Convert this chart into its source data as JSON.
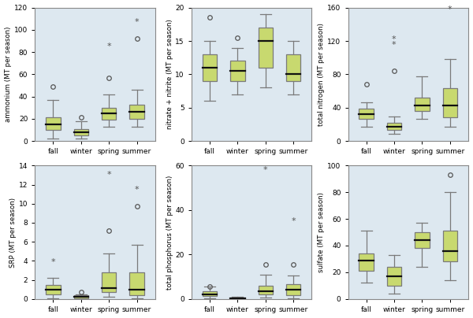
{
  "fig_background": "#ffffff",
  "background_color": "#dde8f0",
  "box_color": "#c8d96f",
  "box_edge_color": "#7a7a7a",
  "median_color": "#111111",
  "whisker_color": "#7a7a7a",
  "outlier_color": "#555555",
  "subplots": [
    {
      "ylabel": "ammonium (MT per season)",
      "ylim": [
        0,
        120
      ],
      "yticks": [
        0,
        20,
        40,
        60,
        80,
        100,
        120
      ],
      "seasons": [
        "fall",
        "winter",
        "spring",
        "summer"
      ],
      "boxes": [
        {
          "q1": 10,
          "median": 15,
          "q3": 21,
          "whislo": 2,
          "whishi": 37
        },
        {
          "q1": 5,
          "median": 8,
          "q3": 11,
          "whislo": 2,
          "whishi": 18
        },
        {
          "q1": 19,
          "median": 25,
          "q3": 30,
          "whislo": 13,
          "whishi": 42
        },
        {
          "q1": 20,
          "median": 26,
          "q3": 33,
          "whislo": 13,
          "whishi": 46
        }
      ],
      "outliers": [
        [
          49
        ],
        [
          21
        ],
        [
          57
        ],
        [
          92
        ]
      ],
      "stars": [
        [],
        [],
        [
          85
        ],
        [
          107
        ]
      ]
    },
    {
      "ylabel": "nitrate + nitrite (MT per season)",
      "ylim": [
        0,
        20
      ],
      "yticks": [
        0,
        5,
        10,
        15,
        20
      ],
      "seasons": [
        "fall",
        "winter",
        "spring",
        "summer"
      ],
      "boxes": [
        {
          "q1": 9,
          "median": 11,
          "q3": 13,
          "whislo": 6,
          "whishi": 15
        },
        {
          "q1": 9,
          "median": 10.5,
          "q3": 12,
          "whislo": 7,
          "whishi": 14
        },
        {
          "q1": 11,
          "median": 15,
          "q3": 17,
          "whislo": 8,
          "whishi": 19
        },
        {
          "q1": 9,
          "median": 10,
          "q3": 13,
          "whislo": 7,
          "whishi": 15
        }
      ],
      "outliers": [
        [
          18.5
        ],
        [
          15.5
        ],
        [],
        []
      ],
      "stars": [
        [],
        [],
        [],
        []
      ]
    },
    {
      "ylabel": "total nitrogen (MT per season)",
      "ylim": [
        0,
        160
      ],
      "yticks": [
        0,
        40,
        80,
        120,
        160
      ],
      "seasons": [
        "fall",
        "winter",
        "spring",
        "summer"
      ],
      "boxes": [
        {
          "q1": 27,
          "median": 32,
          "q3": 39,
          "whislo": 17,
          "whishi": 46
        },
        {
          "q1": 13,
          "median": 17,
          "q3": 22,
          "whislo": 9,
          "whishi": 29
        },
        {
          "q1": 36,
          "median": 43,
          "q3": 52,
          "whislo": 27,
          "whishi": 78
        },
        {
          "q1": 28,
          "median": 43,
          "q3": 63,
          "whislo": 17,
          "whishi": 98
        }
      ],
      "outliers": [
        [
          68
        ],
        [
          84
        ],
        [],
        []
      ],
      "stars": [
        [],
        [
          115,
          122
        ],
        [],
        [
          158
        ]
      ]
    },
    {
      "ylabel": "SRP (MT per season)",
      "ylim": [
        0,
        14
      ],
      "yticks": [
        0,
        2,
        4,
        6,
        8,
        10,
        12,
        14
      ],
      "seasons": [
        "fall",
        "winter",
        "spring",
        "summer"
      ],
      "boxes": [
        {
          "q1": 0.5,
          "median": 1.0,
          "q3": 1.5,
          "whislo": 0.05,
          "whishi": 2.2
        },
        {
          "q1": 0.05,
          "median": 0.2,
          "q3": 0.35,
          "whislo": 0.02,
          "whishi": 0.5
        },
        {
          "q1": 0.7,
          "median": 1.1,
          "q3": 2.8,
          "whislo": 0.2,
          "whishi": 4.8
        },
        {
          "q1": 0.4,
          "median": 1.0,
          "q3": 2.8,
          "whislo": 0.1,
          "whishi": 5.7
        }
      ],
      "outliers": [
        [],
        [
          0.72
        ],
        [
          7.2
        ],
        [
          9.7
        ]
      ],
      "stars": [
        [
          3.9
        ],
        [],
        [
          13.0
        ],
        [
          11.5
        ]
      ]
    },
    {
      "ylabel": "total phosphorus (MT per season)",
      "ylim": [
        0,
        60
      ],
      "yticks": [
        0,
        20,
        40,
        60
      ],
      "seasons": [
        "fall",
        "winter",
        "spring",
        "summer"
      ],
      "boxes": [
        {
          "q1": 1.2,
          "median": 2.2,
          "q3": 3.5,
          "whislo": 0.3,
          "whishi": 5.5
        },
        {
          "q1": 0.1,
          "median": 0.3,
          "q3": 0.6,
          "whislo": 0.05,
          "whishi": 1.0
        },
        {
          "q1": 2.0,
          "median": 3.5,
          "q3": 6.0,
          "whislo": 0.5,
          "whishi": 11.0
        },
        {
          "q1": 1.5,
          "median": 4.0,
          "q3": 6.5,
          "whislo": 0.3,
          "whishi": 10.5
        }
      ],
      "outliers": [
        [
          5.5
        ],
        [],
        [
          15.5
        ],
        [
          15.5
        ]
      ],
      "stars": [
        [],
        [],
        [
          58.0
        ],
        [
          35.0
        ]
      ]
    },
    {
      "ylabel": "sulfate (MT per season)",
      "ylim": [
        0,
        100
      ],
      "yticks": [
        0,
        20,
        40,
        60,
        80,
        100
      ],
      "seasons": [
        "fall",
        "winter",
        "spring",
        "summer"
      ],
      "boxes": [
        {
          "q1": 21,
          "median": 29,
          "q3": 34,
          "whislo": 12,
          "whishi": 51
        },
        {
          "q1": 10,
          "median": 17,
          "q3": 24,
          "whislo": 4,
          "whishi": 33
        },
        {
          "q1": 38,
          "median": 44,
          "q3": 50,
          "whislo": 24,
          "whishi": 57
        },
        {
          "q1": 28,
          "median": 36,
          "q3": 51,
          "whislo": 14,
          "whishi": 80
        }
      ],
      "outliers": [
        [],
        [],
        [],
        [
          93
        ]
      ],
      "stars": [
        [],
        [],
        [],
        []
      ]
    }
  ]
}
